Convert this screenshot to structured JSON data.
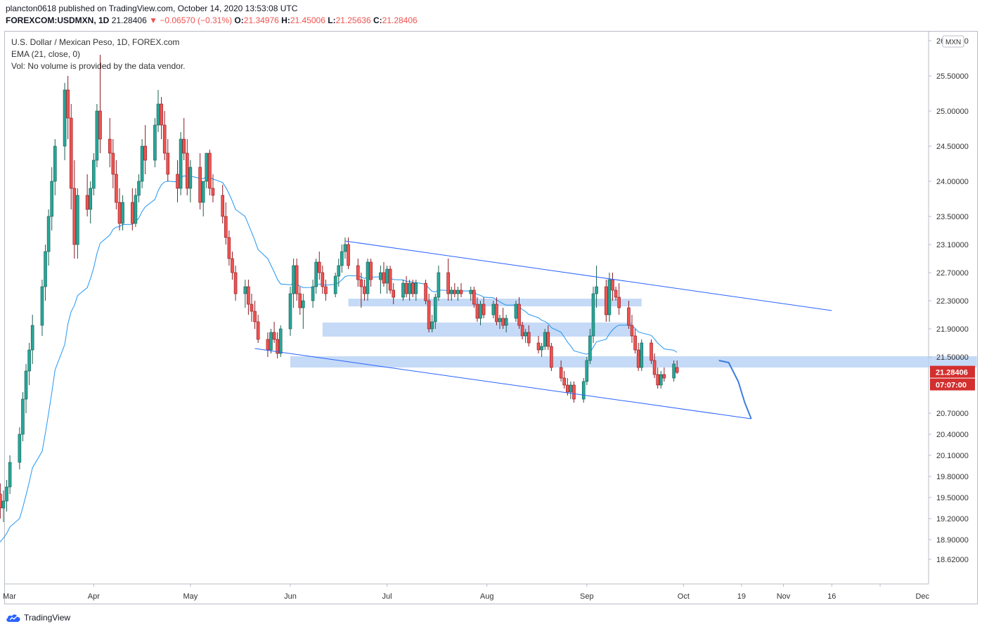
{
  "header": {
    "publisher_line": "plancton0618 published on TradingView.com, October 14, 2020 13:53:08 UTC",
    "symbol": "FOREXCOM:USDMXN, 1D",
    "last": "21.28406",
    "arrow": "▼",
    "change": "−0.06570 (−0.31%)",
    "o_label": "O:",
    "o": "21.34976",
    "h_label": "H:",
    "h": "21.45006",
    "l_label": "L:",
    "l": "21.25636",
    "c_label": "C:",
    "c": "21.28406"
  },
  "legend": {
    "title": "U.S. Dollar / Mexican Peso, 1D, FOREX.com",
    "ema": "EMA (21, close, 0)",
    "vol": "Vol: No volume is provided by the data vendor."
  },
  "footer": {
    "brand": "TradingView"
  },
  "colors": {
    "up": "#26a69a",
    "down": "#ef5350",
    "candle_up_fill": "#1b5e50",
    "candle_down_fill": "#b22833",
    "ema": "#2196f3",
    "trend": "#2962ff",
    "zone": "#bbd3f5",
    "price_tag": "#d32f2f"
  },
  "chart_data": {
    "type": "candlestick",
    "title": "U.S. Dollar / Mexican Peso, 1D, FOREX.com",
    "currency_badge": "MXN",
    "y_ticks": [
      "26.00000",
      "25.50000",
      "25.00000",
      "24.50000",
      "24.00000",
      "23.50000",
      "23.10000",
      "22.70000",
      "22.30000",
      "21.90000",
      "21.50000",
      "20.70000",
      "20.40000",
      "20.10000",
      "19.80000",
      "19.50000",
      "19.20000",
      "18.90000",
      "18.62000"
    ],
    "x_ticks": [
      "Mar",
      "Apr",
      "May",
      "Jun",
      "Jul",
      "Aug",
      "Sep",
      "Oct",
      "19",
      "Nov",
      "16",
      "Dec"
    ],
    "last_price": "21.28406",
    "countdown": "07:07:00",
    "start_date": "2020-03-02",
    "candles": [
      [
        19.45,
        19.9,
        19.3,
        19.55
      ],
      [
        19.55,
        19.7,
        19.2,
        19.35
      ],
      [
        19.35,
        19.6,
        19.15,
        19.45
      ],
      [
        19.45,
        19.75,
        19.3,
        19.65
      ],
      [
        19.65,
        20.1,
        19.55,
        20.0
      ],
      [
        20.0,
        20.5,
        19.9,
        20.4
      ],
      [
        20.4,
        21.0,
        20.3,
        20.9
      ],
      [
        20.9,
        21.4,
        20.7,
        21.3
      ],
      [
        21.3,
        21.7,
        21.1,
        21.6
      ],
      [
        21.6,
        22.1,
        21.4,
        21.95
      ],
      [
        21.95,
        22.6,
        21.8,
        22.5
      ],
      [
        22.5,
        23.1,
        22.3,
        23.0
      ],
      [
        23.0,
        23.6,
        22.8,
        23.5
      ],
      [
        23.5,
        24.2,
        23.3,
        24.0
      ],
      [
        24.0,
        24.6,
        23.8,
        24.5
      ],
      [
        24.5,
        25.4,
        24.3,
        25.3
      ],
      [
        25.3,
        25.5,
        24.6,
        24.9
      ],
      [
        24.9,
        25.1,
        23.6,
        23.9
      ],
      [
        23.9,
        24.3,
        22.9,
        23.1
      ],
      [
        23.1,
        23.9,
        22.9,
        23.8
      ],
      [
        23.8,
        24.1,
        23.5,
        23.6
      ],
      [
        23.6,
        24.0,
        23.4,
        23.9
      ],
      [
        23.9,
        24.4,
        23.8,
        24.3
      ],
      [
        24.3,
        25.1,
        24.2,
        25.0
      ],
      [
        25.0,
        25.8,
        24.4,
        24.6
      ],
      [
        24.6,
        24.9,
        24.2,
        24.4
      ],
      [
        24.4,
        24.6,
        23.9,
        24.1
      ],
      [
        24.1,
        24.3,
        23.6,
        23.7
      ],
      [
        23.7,
        23.9,
        23.3,
        23.4
      ],
      [
        23.4,
        23.8,
        23.3,
        23.7
      ],
      [
        23.7,
        23.9,
        23.3,
        23.4
      ],
      [
        23.4,
        23.9,
        23.35,
        23.8
      ],
      [
        23.8,
        24.1,
        23.7,
        24.0
      ],
      [
        24.0,
        24.6,
        23.9,
        24.5
      ],
      [
        24.5,
        24.8,
        24.1,
        24.3
      ],
      [
        24.3,
        24.9,
        24.2,
        24.8
      ],
      [
        24.8,
        25.3,
        24.7,
        25.1
      ],
      [
        25.1,
        25.2,
        24.6,
        24.8
      ],
      [
        24.8,
        25.0,
        24.3,
        24.4
      ],
      [
        24.4,
        24.6,
        24.0,
        24.1
      ],
      [
        24.1,
        24.3,
        23.7,
        23.9
      ],
      [
        23.9,
        24.7,
        23.8,
        24.6
      ],
      [
        24.6,
        24.9,
        24.3,
        24.4
      ],
      [
        24.4,
        24.6,
        23.8,
        23.9
      ],
      [
        23.9,
        24.3,
        23.7,
        24.2
      ],
      [
        24.2,
        24.4,
        23.6,
        23.7
      ],
      [
        23.7,
        24.0,
        23.5,
        24.0
      ],
      [
        24.0,
        24.4,
        23.9,
        24.4
      ],
      [
        24.4,
        24.45,
        23.8,
        23.9
      ],
      [
        23.9,
        24.1,
        23.7,
        23.8
      ],
      [
        23.8,
        23.95,
        23.4,
        23.5
      ],
      [
        23.5,
        23.7,
        23.1,
        23.2
      ],
      [
        23.2,
        23.3,
        22.8,
        22.9
      ],
      [
        22.9,
        23.0,
        22.6,
        22.7
      ],
      [
        22.7,
        22.8,
        22.3,
        22.4
      ],
      [
        22.4,
        22.6,
        22.2,
        22.5
      ],
      [
        22.5,
        22.6,
        22.1,
        22.25
      ],
      [
        22.25,
        22.4,
        22.0,
        22.15
      ],
      [
        22.15,
        22.3,
        21.9,
        22.0
      ],
      [
        22.0,
        22.1,
        21.7,
        21.75
      ],
      [
        21.75,
        21.85,
        21.5,
        21.6
      ],
      [
        21.6,
        21.9,
        21.55,
        21.85
      ],
      [
        21.85,
        22.0,
        21.7,
        21.75
      ],
      [
        21.75,
        21.85,
        21.48,
        21.55
      ],
      [
        21.55,
        21.95,
        21.5,
        21.9
      ],
      [
        21.9,
        22.5,
        21.8,
        22.4
      ],
      [
        22.4,
        22.9,
        22.2,
        22.8
      ],
      [
        22.8,
        22.9,
        22.3,
        22.4
      ],
      [
        22.4,
        22.5,
        22.1,
        22.2
      ],
      [
        22.2,
        22.4,
        21.9,
        22.3
      ],
      [
        22.3,
        22.6,
        22.2,
        22.5
      ],
      [
        22.5,
        22.9,
        22.4,
        22.85
      ],
      [
        22.85,
        23.0,
        22.6,
        22.7
      ],
      [
        22.7,
        22.8,
        22.4,
        22.5
      ],
      [
        22.5,
        22.6,
        22.3,
        22.4
      ],
      [
        22.4,
        22.7,
        22.35,
        22.65
      ],
      [
        22.65,
        22.9,
        22.5,
        22.8
      ],
      [
        22.8,
        23.1,
        22.7,
        23.0
      ],
      [
        23.0,
        23.2,
        22.9,
        23.1
      ],
      [
        23.1,
        23.2,
        22.75,
        22.8
      ],
      [
        22.8,
        22.9,
        22.5,
        22.6
      ],
      [
        22.6,
        22.7,
        22.2,
        22.5
      ],
      [
        22.5,
        22.6,
        22.3,
        22.4
      ],
      [
        22.4,
        22.9,
        22.3,
        22.85
      ],
      [
        22.85,
        22.9,
        22.5,
        22.6
      ],
      [
        22.6,
        22.8,
        22.4,
        22.7
      ],
      [
        22.7,
        22.85,
        22.5,
        22.55
      ],
      [
        22.55,
        22.8,
        22.4,
        22.75
      ],
      [
        22.75,
        22.8,
        22.4,
        22.45
      ],
      [
        22.45,
        22.55,
        22.25,
        22.35
      ],
      [
        22.35,
        22.6,
        22.3,
        22.55
      ],
      [
        22.55,
        22.65,
        22.35,
        22.4
      ],
      [
        22.4,
        22.6,
        22.3,
        22.55
      ],
      [
        22.55,
        22.6,
        22.35,
        22.4
      ],
      [
        22.4,
        22.6,
        22.3,
        22.55
      ],
      [
        22.55,
        22.6,
        22.25,
        22.3
      ],
      [
        22.3,
        22.4,
        21.85,
        21.9
      ],
      [
        21.9,
        22.1,
        21.85,
        22.0
      ],
      [
        22.0,
        22.4,
        21.9,
        22.35
      ],
      [
        22.35,
        22.8,
        22.3,
        22.7
      ],
      [
        22.7,
        22.9,
        22.3,
        22.4
      ],
      [
        22.4,
        22.5,
        22.3,
        22.45
      ],
      [
        22.45,
        22.55,
        22.35,
        22.4
      ],
      [
        22.4,
        22.5,
        22.3,
        22.45
      ],
      [
        22.45,
        22.55,
        22.35,
        22.4
      ],
      [
        22.4,
        22.5,
        22.3,
        22.45
      ],
      [
        22.45,
        22.5,
        22.2,
        22.25
      ],
      [
        22.25,
        22.35,
        22.0,
        22.05
      ],
      [
        22.05,
        22.3,
        21.95,
        22.25
      ],
      [
        22.25,
        22.35,
        22.05,
        22.1
      ],
      [
        22.1,
        22.3,
        22.05,
        22.25
      ],
      [
        22.25,
        22.35,
        21.95,
        22.0
      ],
      [
        22.0,
        22.1,
        21.9,
        22.05
      ],
      [
        22.05,
        22.2,
        21.9,
        21.95
      ],
      [
        21.95,
        22.1,
        21.85,
        22.05
      ],
      [
        22.05,
        22.3,
        22.0,
        22.25
      ],
      [
        22.25,
        22.35,
        21.9,
        21.95
      ],
      [
        21.95,
        22.0,
        21.75,
        21.8
      ],
      [
        21.8,
        21.9,
        21.7,
        21.85
      ],
      [
        21.85,
        21.95,
        21.65,
        21.7
      ],
      [
        21.7,
        21.8,
        21.55,
        21.6
      ],
      [
        21.6,
        21.7,
        21.5,
        21.65
      ],
      [
        21.65,
        21.9,
        21.6,
        21.85
      ],
      [
        21.85,
        21.95,
        21.6,
        21.65
      ],
      [
        21.65,
        21.7,
        21.3,
        21.35
      ],
      [
        21.35,
        21.45,
        21.15,
        21.2
      ],
      [
        21.2,
        21.3,
        21.05,
        21.1
      ],
      [
        21.1,
        21.2,
        20.95,
        21.0
      ],
      [
        21.0,
        21.15,
        20.9,
        21.1
      ],
      [
        21.1,
        21.15,
        20.85,
        20.9
      ],
      [
        20.9,
        21.2,
        20.85,
        21.15
      ],
      [
        21.15,
        21.5,
        21.1,
        21.45
      ],
      [
        21.45,
        21.9,
        21.4,
        21.8
      ],
      [
        21.8,
        22.5,
        21.7,
        22.4
      ],
      [
        22.4,
        22.8,
        22.2,
        22.5
      ],
      [
        22.5,
        22.6,
        22.0,
        22.1
      ],
      [
        22.1,
        22.7,
        22.0,
        22.6
      ],
      [
        22.6,
        22.7,
        22.3,
        22.45
      ],
      [
        22.45,
        22.5,
        22.3,
        22.35
      ],
      [
        22.35,
        22.55,
        22.1,
        22.2
      ],
      [
        22.2,
        22.3,
        21.9,
        21.95
      ],
      [
        21.95,
        22.1,
        21.7,
        21.8
      ],
      [
        21.8,
        21.9,
        21.55,
        21.6
      ],
      [
        21.6,
        21.7,
        21.3,
        21.35
      ],
      [
        21.35,
        21.75,
        21.3,
        21.7
      ],
      [
        21.7,
        21.75,
        21.4,
        21.45
      ],
      [
        21.45,
        21.55,
        21.2,
        21.25
      ],
      [
        21.25,
        21.35,
        21.05,
        21.1
      ],
      [
        21.1,
        21.3,
        21.05,
        21.25
      ],
      [
        21.25,
        21.35,
        21.15,
        21.2
      ],
      [
        21.2,
        21.45,
        21.15,
        21.4
      ],
      [
        21.35,
        21.45,
        21.26,
        21.28
      ]
    ],
    "ema_length": 21,
    "annotations": {
      "upper_trendline": [
        [
          "2020-06-18",
          23.15
        ],
        [
          "2020-11-16",
          22.16
        ]
      ],
      "lower_trendline": [
        [
          "2020-05-21",
          21.62
        ],
        [
          "2020-10-22",
          20.62
        ]
      ],
      "zones": [
        {
          "from": "2020-06-19",
          "to": "2020-09-18",
          "low": 22.25,
          "high": 22.3
        },
        {
          "from": "2020-06-11",
          "to": "2020-09-15",
          "low": 21.82,
          "high": 21.96
        },
        {
          "from": "2020-06-01",
          "to": "2020-12-31",
          "low": 21.38,
          "high": 21.48
        }
      ],
      "projection": [
        [
          "2020-10-12",
          21.45
        ],
        [
          "2020-10-15",
          21.42
        ],
        [
          "2020-10-18",
          21.15
        ],
        [
          "2020-10-20",
          20.85
        ],
        [
          "2020-10-22",
          20.62
        ]
      ]
    }
  }
}
